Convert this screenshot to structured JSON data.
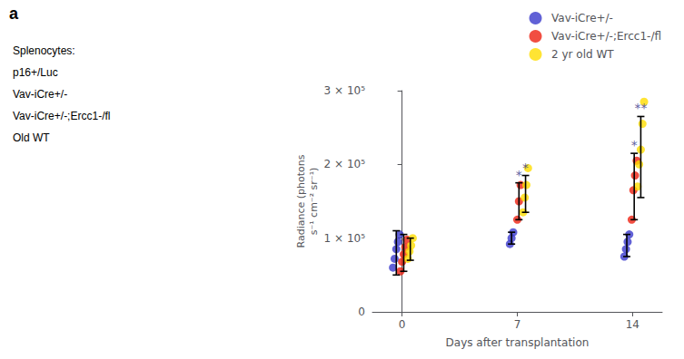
{
  "chart_data": {
    "type": "scatter",
    "title": "a",
    "x": [
      0,
      7,
      14
    ],
    "xlabel": "Days after transplantation",
    "ylabel": "Radiance (photons\ns⁻¹ cm⁻² sr⁻¹)",
    "xlim": [
      -1.8,
      15.8
    ],
    "xticks": [
      0,
      7,
      14
    ],
    "ylim": [
      0,
      300000
    ],
    "yticks": [
      0,
      {
        "value": 100000,
        "label": "1 × 10⁵"
      },
      {
        "value": 200000,
        "label": "2 × 10⁵"
      },
      {
        "value": 300000,
        "label": "3 × 10⁵"
      }
    ],
    "grid": false,
    "legend": "top right",
    "series": [
      {
        "name": "Vav-iCre+/-",
        "color": "#3939CC",
        "points": [
          [
            60000,
            72000,
            85000,
            95000,
            105000
          ],
          [
            92000,
            100000,
            108000
          ],
          [
            75000,
            85000,
            95000,
            105000
          ]
        ],
        "means": [
          80000,
          100000,
          90000
        ],
        "errors": [
          30000,
          8000,
          15000
        ]
      },
      {
        "name": "Vav-iCre+/-;Ercc1-/fl",
        "color": "#EE2211",
        "points": [
          [
            55000,
            68000,
            78000,
            88000,
            98000
          ],
          [
            125000,
            150000,
            172000
          ],
          [
            125000,
            165000,
            185000,
            205000
          ]
        ],
        "means": [
          80000,
          150000,
          170000
        ],
        "errors": [
          25000,
          25000,
          45000
        ]
      },
      {
        "name": "2 yr old WT",
        "color": "#FFDD00",
        "points": [
          [
            72000,
            82000,
            90000,
            100000
          ],
          [
            135000,
            155000,
            172000,
            195000
          ],
          [
            170000,
            200000,
            220000,
            255000,
            285000
          ]
        ],
        "means": [
          85000,
          160000,
          210000
        ],
        "errors": [
          15000,
          25000,
          55000
        ]
      }
    ],
    "annotations": [
      {
        "text": "*",
        "x": 7,
        "series": "Vav-iCre+/-;Ercc1-/fl",
        "color": "#333388"
      },
      {
        "text": "*",
        "x": 7,
        "series": "2 yr old WT",
        "color": "#333388"
      },
      {
        "text": "*",
        "x": 14,
        "series": "Vav-iCre+/-;Ercc1-/fl",
        "color": "#333388"
      },
      {
        "text": "**",
        "x": 14,
        "series": "2 yr old WT",
        "color": "#333388"
      },
      {
        "text": "Splenocytes:"
      },
      {
        "text": "p16+/Luc"
      },
      {
        "text": "Vav-iCre+/-"
      },
      {
        "text": "Vav-iCre+/-;Ercc1-/fl"
      },
      {
        "text": "Old WT"
      }
    ]
  }
}
